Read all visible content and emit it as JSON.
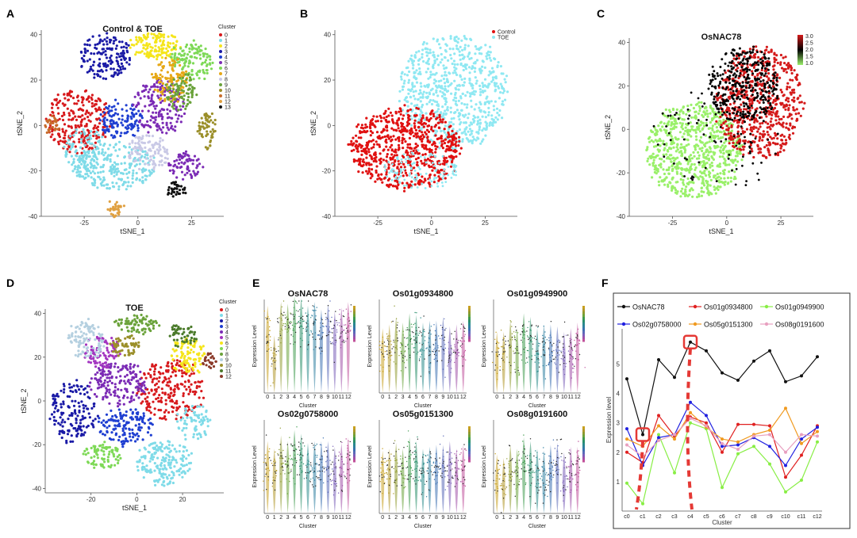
{
  "panel_letters": [
    "A",
    "B",
    "C",
    "D",
    "E",
    "F"
  ],
  "chart_data": [
    {
      "panel": "A",
      "type": "scatter",
      "title": "Control & TOE",
      "xlabel": "tSNE_1",
      "ylabel": "tSNE_2",
      "xticks": [
        "-25",
        "0",
        "25"
      ],
      "yticks": [
        "40",
        "20",
        "0",
        "-20",
        "-40"
      ],
      "xlim": [
        -45,
        40
      ],
      "ylim": [
        -40,
        42
      ],
      "legend_title": "Cluster",
      "legend": [
        "0",
        "1",
        "2",
        "3",
        "4",
        "5",
        "6",
        "7",
        "8",
        "9",
        "10",
        "11",
        "12",
        "13"
      ],
      "colors": [
        "#d7191c",
        "#7fdbe8",
        "#f5e51b",
        "#1a1aa6",
        "#1f3fd1",
        "#7b2bb5",
        "#7ed957",
        "#e6a817",
        "#c9c9e6",
        "#6aa23a",
        "#9b8f2a",
        "#c86b2a",
        "#e0a040",
        "#111111"
      ]
    },
    {
      "panel": "B",
      "type": "scatter",
      "title": "",
      "xlabel": "tSNE_1",
      "ylabel": "tSNE_2",
      "xticks": [
        "-25",
        "0",
        "25"
      ],
      "yticks": [
        "40",
        "20",
        "0",
        "-20",
        "-40"
      ],
      "xlim": [
        -45,
        40
      ],
      "ylim": [
        -40,
        42
      ],
      "legend": [
        "Control",
        "TOE"
      ],
      "colors": [
        "#e01010",
        "#8fe8f2"
      ]
    },
    {
      "panel": "C",
      "type": "scatter",
      "title": "OsNAC78",
      "xlabel": "tSNE_1",
      "ylabel": "tSNE_2",
      "xticks": [
        "-25",
        "0",
        "25"
      ],
      "yticks": [
        "40",
        "20",
        "0",
        "-20",
        "-40"
      ],
      "xlim": [
        -45,
        40
      ],
      "ylim": [
        -40,
        42
      ],
      "colorbar_ticks": [
        "3.0",
        "2.5",
        "2.0",
        "1.5",
        "1.0"
      ],
      "colors": [
        "#9af06a",
        "#000000",
        "#d41a1a"
      ]
    },
    {
      "panel": "D",
      "type": "scatter",
      "title": "TOE",
      "xlabel": "tSNE_1",
      "ylabel": "tSNE_2",
      "xticks": [
        "-20",
        "0",
        "20"
      ],
      "yticks": [
        "40",
        "20",
        "0",
        "-20",
        "-40"
      ],
      "xlim": [
        -40,
        38
      ],
      "ylim": [
        -42,
        42
      ],
      "legend_title": "Cluster",
      "legend": [
        "0",
        "1",
        "2",
        "3",
        "4",
        "5",
        "6",
        "7",
        "8",
        "9",
        "10",
        "11",
        "12"
      ],
      "colors": [
        "#d7191c",
        "#7fdbe8",
        "#1a1aa6",
        "#1f3fd1",
        "#7b2bb5",
        "#a335c0",
        "#f5e51b",
        "#7ed957",
        "#6aa23a",
        "#b5d0e0",
        "#9b8f2a",
        "#4a7a2a",
        "#8b3a2a"
      ]
    },
    {
      "panel": "E",
      "type": "violin",
      "xlabel": "Cluster",
      "ylabel": "Expression Level",
      "categories": [
        "0",
        "1",
        "2",
        "3",
        "4",
        "5",
        "6",
        "7",
        "8",
        "9",
        "10",
        "11",
        "12"
      ],
      "genes": [
        "OsNAC78",
        "Os01g0934800",
        "Os01g0949900",
        "Os02g0758000",
        "Os05g0151300",
        "Os08g0191600"
      ]
    },
    {
      "panel": "F",
      "type": "line",
      "xlabel": "Cluster",
      "ylabel": "Expression level",
      "categories": [
        "c0",
        "c1",
        "c2",
        "c3",
        "c4",
        "c5",
        "c6",
        "c7",
        "c8",
        "c9",
        "c10",
        "c11",
        "c12"
      ],
      "yticks": [
        "1",
        "2",
        "3",
        "4",
        "5"
      ],
      "ylim": [
        0,
        6.2
      ],
      "series": [
        {
          "name": "OsNAC78",
          "color": "#111111",
          "values": [
            4.5,
            2.6,
            5.15,
            4.55,
            5.75,
            5.45,
            4.7,
            4.45,
            5.1,
            5.45,
            4.4,
            4.6,
            5.25
          ]
        },
        {
          "name": "Os01g0934800",
          "color": "#e02020",
          "values": [
            2.0,
            1.65,
            3.25,
            2.55,
            3.2,
            3.0,
            2.0,
            2.95,
            2.95,
            2.9,
            1.15,
            1.9,
            2.9
          ]
        },
        {
          "name": "Os01g0949900",
          "color": "#88ee44",
          "values": [
            0.95,
            0.25,
            2.6,
            1.3,
            3.0,
            2.8,
            0.8,
            1.95,
            2.2,
            1.6,
            0.65,
            1.05,
            2.35
          ]
        },
        {
          "name": "Os02g0758000",
          "color": "#2020e0",
          "values": [
            2.8,
            1.55,
            2.5,
            2.6,
            3.7,
            3.25,
            2.2,
            2.25,
            2.5,
            2.2,
            1.55,
            2.45,
            2.85
          ]
        },
        {
          "name": "Os05g0151300",
          "color": "#f09a20",
          "values": [
            2.45,
            2.2,
            2.9,
            2.45,
            3.35,
            2.85,
            2.45,
            2.35,
            2.6,
            2.75,
            3.5,
            2.3,
            2.7
          ]
        },
        {
          "name": "Os08g0191600",
          "color": "#e8a0c0",
          "values": [
            2.25,
            1.85,
            2.4,
            2.6,
            3.15,
            2.9,
            2.3,
            2.1,
            2.55,
            2.6,
            2.0,
            2.6,
            2.55
          ]
        }
      ],
      "highlight_clusters": [
        "c1",
        "c4"
      ],
      "highlight_color": "#e53935"
    }
  ]
}
